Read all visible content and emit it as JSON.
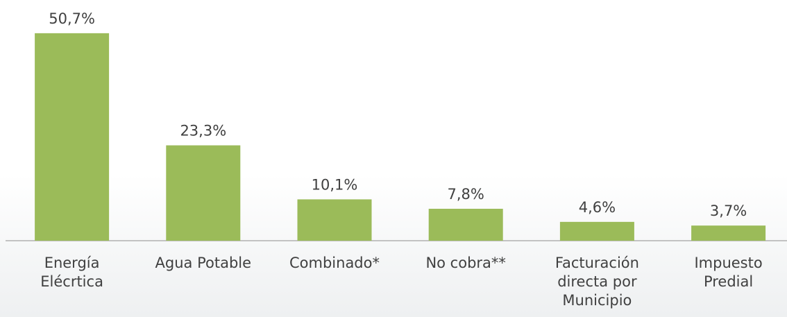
{
  "chart_data": {
    "type": "bar",
    "categories": [
      "Energía Elécrtica",
      "Agua Potable",
      "Combinado*",
      "No cobra**",
      "Facturación directa por Municipio",
      "Impuesto Predial"
    ],
    "values": [
      50.7,
      23.3,
      10.1,
      7.8,
      4.6,
      3.7
    ],
    "value_labels": [
      "50,7%",
      "23,3%",
      "10,1%",
      "7,8%",
      "4,6%",
      "3,7%"
    ],
    "color": "#9bbb59"
  }
}
